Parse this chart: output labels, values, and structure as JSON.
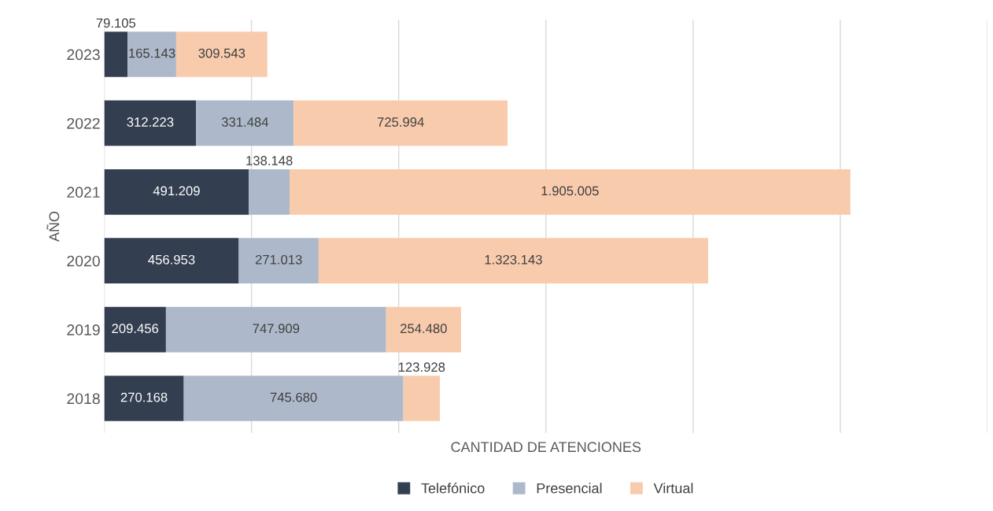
{
  "chart_data": {
    "type": "bar",
    "orientation": "horizontal",
    "stacked": true,
    "xlabel": "CANTIDAD DE ATENCIONES",
    "ylabel": "AÑO",
    "categories": [
      "2023",
      "2022",
      "2021",
      "2020",
      "2019",
      "2018"
    ],
    "series": [
      {
        "name": "Telefónico",
        "color": "#333f50",
        "values": [
          79105,
          312223,
          491209,
          456953,
          209456,
          270168
        ],
        "value_labels": [
          "79.105",
          "312.223",
          "491.209",
          "456.953",
          "209.456",
          "270.168"
        ]
      },
      {
        "name": "Presencial",
        "color": "#adb9ca",
        "values": [
          165143,
          331484,
          138148,
          271013,
          747909,
          745680
        ],
        "value_labels": [
          "165.143",
          "331.484",
          "138.148",
          "271.013",
          "747.909",
          "745.680"
        ]
      },
      {
        "name": "Virtual",
        "color": "#f8cbad",
        "values": [
          309543,
          725994,
          1905005,
          1323143,
          254480,
          123928
        ],
        "value_labels": [
          "309.543",
          "725.994",
          "1.905.005",
          "1.323.143",
          "254.480",
          "123.928"
        ]
      }
    ],
    "xlim": [
      0,
      3000000
    ],
    "xticks": [
      {
        "value": 0,
        "label": null
      },
      {
        "value": 500000,
        "label": null
      },
      {
        "value": 1000000,
        "label": null
      },
      {
        "value": 1500000,
        "label": null
      },
      {
        "value": 2000000,
        "label": null
      },
      {
        "value": 2500000,
        "label": null
      },
      {
        "value": 3000000,
        "label": null
      }
    ],
    "grid": "x",
    "legend": "bottom",
    "tick_labels": "y"
  }
}
